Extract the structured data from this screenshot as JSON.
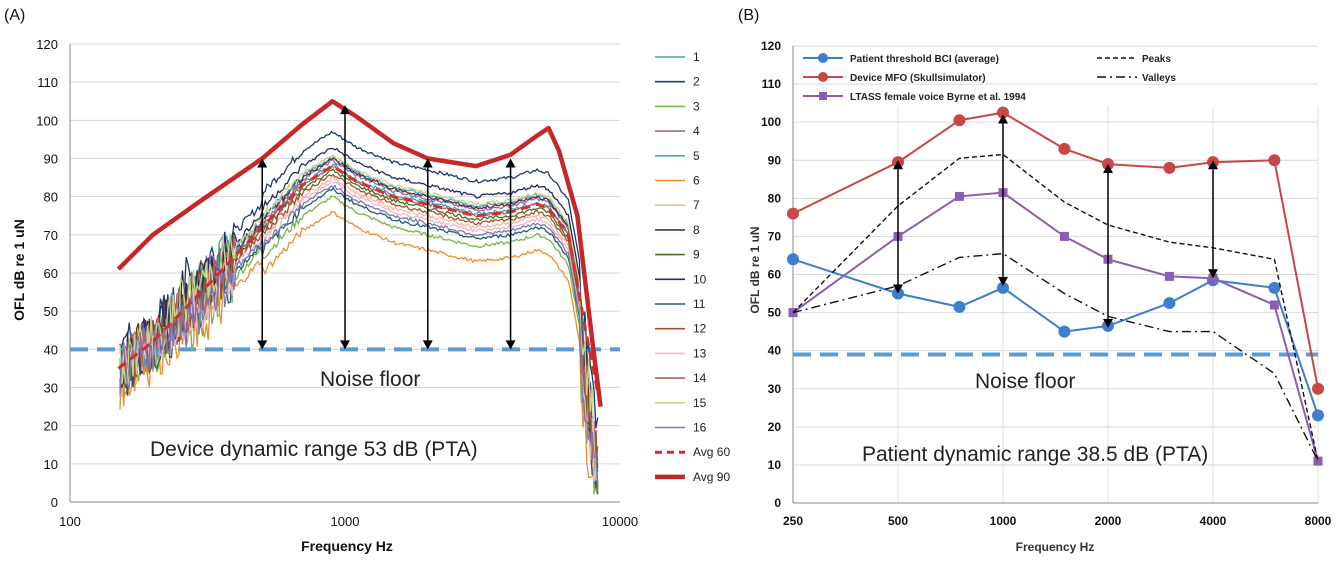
{
  "chart_data": [
    {
      "panel_label": "(A)",
      "type": "line",
      "xlabel": "Frequency Hz",
      "ylabel": "OFL dB re 1 uN",
      "xscale": "log",
      "xlim": [
        100,
        10000
      ],
      "ylim": [
        0,
        120
      ],
      "xticks": [
        "100",
        "1000",
        "10000"
      ],
      "yticks": [
        "0",
        "10",
        "20",
        "30",
        "40",
        "50",
        "60",
        "70",
        "80",
        "90",
        "100",
        "110",
        "120"
      ],
      "grid": "horizontal",
      "legend_position": "right",
      "colors": [
        "#3aa5c6",
        "#1f3a6e",
        "#7ab648",
        "#8e6bb0",
        "#35a8d6",
        "#f08c2a",
        "#f4b89a",
        "#6b2b2b",
        "#4f6b24",
        "#232a5e",
        "#1f5f6b",
        "#a0522d",
        "#f3b6c8",
        "#b0615e",
        "#c5d58a",
        "#7a78b8"
      ],
      "annotations": [
        "Noise floor",
        "Device dynamic range 53 dB (PTA)"
      ],
      "noise_floor": 40,
      "arrows": [
        {
          "x": 500,
          "from": 40,
          "to": 90
        },
        {
          "x": 1000,
          "from": 40,
          "to": 104
        },
        {
          "x": 2000,
          "from": 40,
          "to": 90
        },
        {
          "x": 4000,
          "from": 40,
          "to": 90
        }
      ],
      "series": [
        {
          "name": "1",
          "offset": 0.5
        },
        {
          "name": "2",
          "offset": 9
        },
        {
          "name": "3",
          "offset": -8
        },
        {
          "name": "4",
          "offset": 1.5
        },
        {
          "name": "5",
          "offset": 2.5
        },
        {
          "name": "6",
          "offset": -12
        },
        {
          "name": "7",
          "offset": -3
        },
        {
          "name": "8",
          "offset": 2
        },
        {
          "name": "9",
          "offset": -1
        },
        {
          "name": "10",
          "offset": 5
        },
        {
          "name": "11",
          "offset": -6
        },
        {
          "name": "12",
          "offset": -2
        },
        {
          "name": "13",
          "offset": -4
        },
        {
          "name": "14",
          "offset": 0
        },
        {
          "name": "15",
          "offset": 3
        },
        {
          "name": "16",
          "offset": -5
        },
        {
          "name": "Avg 60",
          "style": "dashed",
          "color": "#d22f2f",
          "x": [
            150,
            200,
            300,
            500,
            700,
            900,
            1100,
            1500,
            2000,
            3000,
            4000,
            5000,
            5500,
            6500,
            7500,
            8500
          ],
          "y": [
            35,
            42,
            55,
            72,
            83,
            88,
            84,
            80,
            78,
            75,
            76,
            78,
            77,
            70,
            45,
            25
          ]
        },
        {
          "name": "Avg 90",
          "style": "solid-thick",
          "color": "#c62828",
          "x": [
            150,
            200,
            300,
            500,
            700,
            900,
            1100,
            1500,
            2000,
            3000,
            4000,
            5000,
            5500,
            6000,
            7000,
            8000,
            8500
          ],
          "y": [
            61,
            70,
            79,
            90,
            99,
            105,
            101,
            94,
            90,
            88,
            91,
            96,
            98,
            92,
            75,
            40,
            25
          ]
        }
      ]
    },
    {
      "panel_label": "(B)",
      "type": "line",
      "xlabel": "Frequency Hz",
      "ylabel": "OFL dB re 1 uN",
      "xscale": "log2",
      "xlim": [
        250,
        8000
      ],
      "ylim": [
        0,
        120
      ],
      "xticks": [
        "250",
        "500",
        "1000",
        "2000",
        "4000",
        "8000"
      ],
      "yticks": [
        "0",
        "10",
        "20",
        "30",
        "40",
        "50",
        "60",
        "70",
        "80",
        "90",
        "100",
        "110",
        "120"
      ],
      "grid": "horizontal",
      "legend_position": "top-left",
      "annotations": [
        "Noise floor",
        "Patient dynamic range 38.5 dB (PTA)"
      ],
      "noise_floor": 39,
      "arrows": [
        {
          "x": 500,
          "from": 55,
          "to": 90
        },
        {
          "x": 1000,
          "from": 57,
          "to": 102
        },
        {
          "x": 2000,
          "from": 46,
          "to": 89
        },
        {
          "x": 4000,
          "from": 59,
          "to": 90
        }
      ],
      "series": [
        {
          "name": "Patient threshold BCI (average)",
          "color": "#3d7fcc",
          "marker": "circle",
          "x": [
            250,
            500,
            750,
            1000,
            1500,
            2000,
            3000,
            4000,
            6000,
            8000
          ],
          "y": [
            64,
            55,
            51.5,
            56.5,
            45,
            46.5,
            52.5,
            58.5,
            56.5,
            23
          ]
        },
        {
          "name": "Device MFO (Skullsimulator)",
          "color": "#c84646",
          "marker": "circle",
          "x": [
            250,
            500,
            750,
            1000,
            1500,
            2000,
            3000,
            4000,
            6000,
            8000
          ],
          "y": [
            76,
            89.5,
            100.5,
            102.5,
            93,
            89,
            88,
            89.5,
            90,
            30
          ]
        },
        {
          "name": "LTASS female voice Byrne et al. 1994",
          "color": "#8a5fb0",
          "marker": "square",
          "x": [
            250,
            500,
            750,
            1000,
            1500,
            2000,
            3000,
            4000,
            6000,
            8000
          ],
          "y": [
            50,
            70,
            80.5,
            81.5,
            70,
            64,
            59.5,
            59,
            52,
            11
          ]
        },
        {
          "name": "Peaks",
          "color": "#111111",
          "style": "dashed",
          "x": [
            250,
            500,
            750,
            1000,
            1500,
            2000,
            3000,
            4000,
            6000,
            8000
          ],
          "y": [
            50,
            78,
            90.5,
            91.5,
            79,
            73,
            68.5,
            67,
            64,
            11
          ]
        },
        {
          "name": "Valleys",
          "color": "#111111",
          "style": "dashdot",
          "x": [
            250,
            500,
            750,
            1000,
            1500,
            2000,
            3000,
            4000,
            6000,
            8000
          ],
          "y": [
            50,
            57,
            64.5,
            65.5,
            55,
            49,
            45,
            45,
            34,
            11
          ]
        }
      ]
    }
  ]
}
